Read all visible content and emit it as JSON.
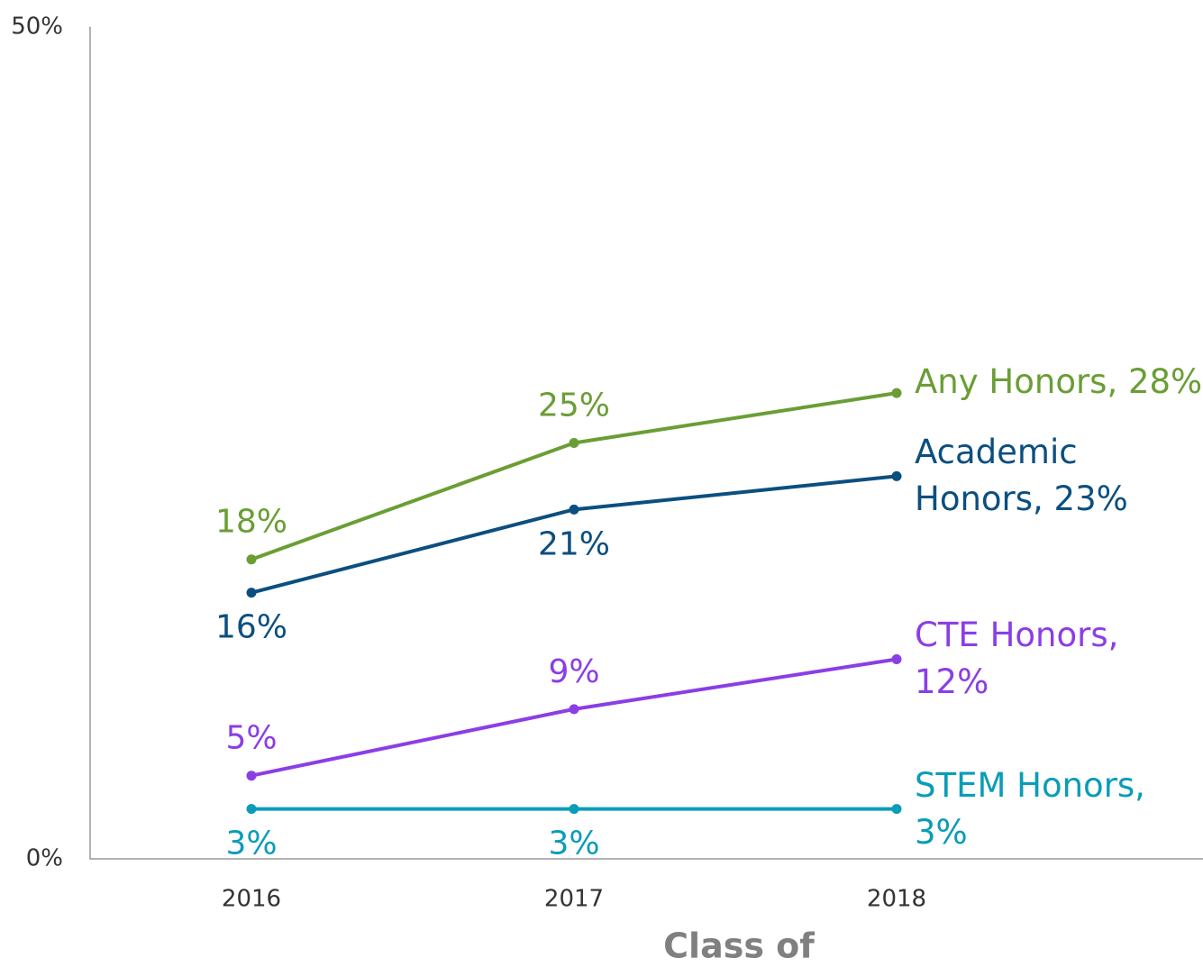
{
  "chart_data": {
    "type": "line",
    "x_label": "Class of",
    "categories": [
      "2016",
      "2017",
      "2018"
    ],
    "series": [
      {
        "color": "#6a9e35",
        "values": [
          18,
          25,
          28
        ],
        "value_labels": [
          "18%",
          "25%",
          "Any Honors, 28%"
        ]
      },
      {
        "color": "#0b4f80",
        "values": [
          16,
          21,
          23
        ],
        "value_labels": [
          "16%",
          "21%",
          "Academic Honors, 23%"
        ]
      },
      {
        "color": "#8a3ee6",
        "values": [
          5,
          9,
          12
        ],
        "value_labels": [
          "5%",
          "9%",
          "CTE Honors, 12%"
        ]
      },
      {
        "color": "#0a9cb8",
        "values": [
          3,
          3,
          3
        ],
        "value_labels": [
          "3%",
          "3%",
          "STEM Honors, 3%"
        ]
      }
    ],
    "ylim": [
      0,
      50
    ],
    "yticks": [
      {
        "value": 0,
        "label": "0%"
      },
      {
        "value": 50,
        "label": "50%"
      }
    ],
    "grid": false
  }
}
